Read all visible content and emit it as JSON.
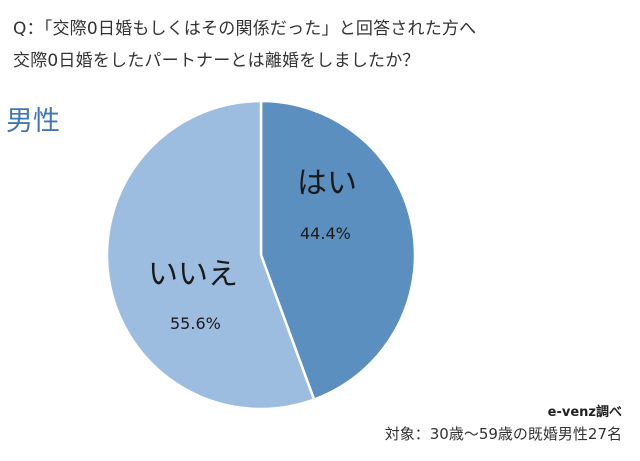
{
  "title": {
    "line1": "Q：「交際0日婚もしくはその関係だった」と回答された方へ",
    "line2": "交際0日婚をしたパートナーとは離婚をしましたか？"
  },
  "segment": "男性",
  "footer": {
    "source": "e-venz調べ",
    "subject": "対象：30歳〜59歳の既婚男性27名"
  },
  "colors": {
    "yes": "#5b8fc0",
    "no": "#9dbde0",
    "segment_label": "#3f78b4"
  },
  "chart_data": {
    "type": "pie",
    "title": "交際0日婚をしたパートナーとは離婚をしましたか？",
    "subtitle": "男性",
    "categories": [
      "はい",
      "いいえ"
    ],
    "values": [
      44.4,
      55.6
    ],
    "unit": "%",
    "labels": [
      {
        "name": "はい",
        "pct": "44.4%"
      },
      {
        "name": "いいえ",
        "pct": "55.6%"
      }
    ],
    "start_angle": "12 o'clock, clockwise",
    "legend": "none (labels inside slices)"
  }
}
